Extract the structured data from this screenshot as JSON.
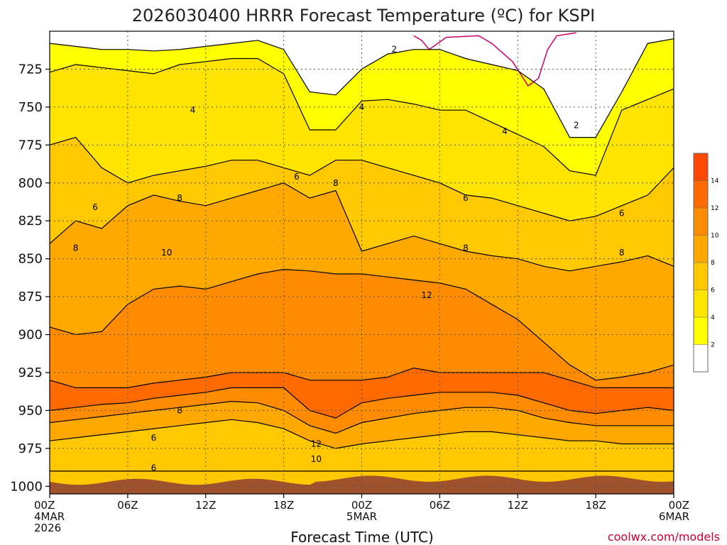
{
  "chart_data": {
    "type": "heatmap",
    "title": "2026030400 HRRR Forecast Temperature (ºC) for KSPI",
    "xlabel": "Forecast Time (UTC)",
    "credit": "coolwx.com/models",
    "y_ticks": [
      725,
      750,
      775,
      800,
      825,
      850,
      875,
      900,
      925,
      950,
      975,
      1000
    ],
    "ylim": [
      1005,
      700
    ],
    "x_ticks": [
      {
        "hour": 0,
        "lines": [
          "00Z",
          "4MAR",
          "2026"
        ]
      },
      {
        "hour": 6,
        "lines": [
          "06Z"
        ]
      },
      {
        "hour": 12,
        "lines": [
          "12Z"
        ]
      },
      {
        "hour": 18,
        "lines": [
          "18Z"
        ]
      },
      {
        "hour": 24,
        "lines": [
          "00Z",
          "5MAR"
        ]
      },
      {
        "hour": 30,
        "lines": [
          "06Z"
        ]
      },
      {
        "hour": 36,
        "lines": [
          "12Z"
        ]
      },
      {
        "hour": 42,
        "lines": [
          "18Z"
        ]
      },
      {
        "hour": 48,
        "lines": [
          "00Z",
          "6MAR"
        ]
      }
    ],
    "xlim": [
      0,
      48
    ],
    "grid": true,
    "colorbar": {
      "levels": [
        2,
        4,
        6,
        8,
        10,
        12,
        14
      ],
      "colors": [
        "#ffffff",
        "#ffff00",
        "#ffe400",
        "#ffc800",
        "#ffa800",
        "#ff8c00",
        "#ff6a00",
        "#ff4800"
      ],
      "tick_labels": [
        "2",
        "4",
        "6",
        "8",
        "10",
        "12",
        "14"
      ]
    },
    "ground_color": "#a0522d",
    "freezing_line_color": "#cc0066",
    "time_hours": [
      0,
      2,
      4,
      6,
      8,
      10,
      12,
      14,
      16,
      18,
      20,
      22,
      24,
      26,
      28,
      30,
      32,
      34,
      36,
      38,
      40,
      42,
      44,
      46,
      48
    ],
    "profiles": [
      {
        "label": "2°C",
        "p": [
          708,
          710,
          712,
          712,
          713,
          712,
          710,
          708,
          706,
          712,
          740,
          742,
          725,
          715,
          712,
          712,
          718,
          722,
          726,
          738,
          770,
          770,
          740,
          708,
          705
        ]
      },
      {
        "label": "4°C",
        "p": [
          727,
          722,
          724,
          726,
          728,
          722,
          720,
          718,
          718,
          728,
          765,
          765,
          746,
          745,
          748,
          752,
          752,
          760,
          768,
          776,
          792,
          795,
          752,
          745,
          738
        ]
      },
      {
        "label": "6°C",
        "p": [
          775,
          770,
          790,
          800,
          795,
          792,
          789,
          785,
          785,
          790,
          795,
          785,
          785,
          790,
          795,
          800,
          808,
          810,
          815,
          820,
          825,
          822,
          815,
          808,
          790
        ]
      },
      {
        "label": "8°C",
        "p": [
          840,
          825,
          830,
          815,
          808,
          812,
          815,
          810,
          805,
          800,
          810,
          805,
          845,
          840,
          835,
          840,
          845,
          848,
          850,
          855,
          858,
          855,
          852,
          848,
          855
        ]
      },
      {
        "label": "10°C",
        "p": [
          895,
          900,
          898,
          880,
          870,
          868,
          870,
          865,
          860,
          857,
          858,
          860,
          860,
          862,
          864,
          866,
          870,
          880,
          890,
          905,
          920,
          930,
          928,
          925,
          920
        ]
      },
      {
        "label": "12°C",
        "p": [
          930,
          935,
          935,
          935,
          932,
          930,
          928,
          925,
          925,
          925,
          930,
          930,
          930,
          928,
          922,
          925,
          925,
          925,
          925,
          925,
          930,
          935,
          935,
          935,
          935
        ]
      },
      {
        "label": "10°C",
        "p": [
          950,
          948,
          946,
          945,
          942,
          940,
          938,
          935,
          935,
          935,
          950,
          955,
          945,
          942,
          940,
          938,
          938,
          938,
          940,
          945,
          950,
          952,
          950,
          948,
          950
        ]
      },
      {
        "label": "8°C",
        "p": [
          958,
          956,
          954,
          952,
          950,
          948,
          946,
          944,
          945,
          950,
          960,
          965,
          958,
          955,
          952,
          950,
          948,
          948,
          950,
          955,
          958,
          960,
          960,
          960,
          960
        ]
      },
      {
        "label": "6°C",
        "p": [
          970,
          968,
          966,
          964,
          962,
          960,
          958,
          956,
          958,
          962,
          970,
          975,
          972,
          970,
          968,
          966,
          964,
          964,
          966,
          968,
          970,
          970,
          972,
          972,
          972
        ]
      },
      {
        "label": "4°C",
        "p": [
          990,
          990,
          990,
          990,
          990,
          990,
          990,
          990,
          990,
          990,
          990,
          990,
          990,
          990,
          990,
          990,
          990,
          990,
          990,
          990,
          990,
          990,
          990,
          990,
          990
        ]
      }
    ],
    "contour_labels": [
      {
        "text": "2",
        "hour": 26.5,
        "p": 712
      },
      {
        "text": "2",
        "hour": 40.5,
        "p": 762
      },
      {
        "text": "4",
        "hour": 11,
        "p": 752
      },
      {
        "text": "4",
        "hour": 24,
        "p": 750
      },
      {
        "text": "4",
        "hour": 35,
        "p": 766
      },
      {
        "text": "6",
        "hour": 19,
        "p": 796
      },
      {
        "text": "6",
        "hour": 3.5,
        "p": 816
      },
      {
        "text": "6",
        "hour": 32,
        "p": 810
      },
      {
        "text": "6",
        "hour": 44,
        "p": 820
      },
      {
        "text": "8",
        "hour": 22,
        "p": 800
      },
      {
        "text": "8",
        "hour": 10,
        "p": 810
      },
      {
        "text": "8",
        "hour": 2,
        "p": 843
      },
      {
        "text": "8",
        "hour": 32,
        "p": 843
      },
      {
        "text": "8",
        "hour": 44,
        "p": 846
      },
      {
        "text": "8",
        "hour": 10,
        "p": 950
      },
      {
        "text": "10",
        "hour": 9,
        "p": 846
      },
      {
        "text": "10",
        "hour": 20.5,
        "p": 982
      },
      {
        "text": "12",
        "hour": 29,
        "p": 874
      },
      {
        "text": "12",
        "hour": 20.5,
        "p": 972
      },
      {
        "text": "6",
        "hour": 8,
        "p": 968
      },
      {
        "text": "6",
        "hour": 8,
        "p": 988
      }
    ]
  }
}
